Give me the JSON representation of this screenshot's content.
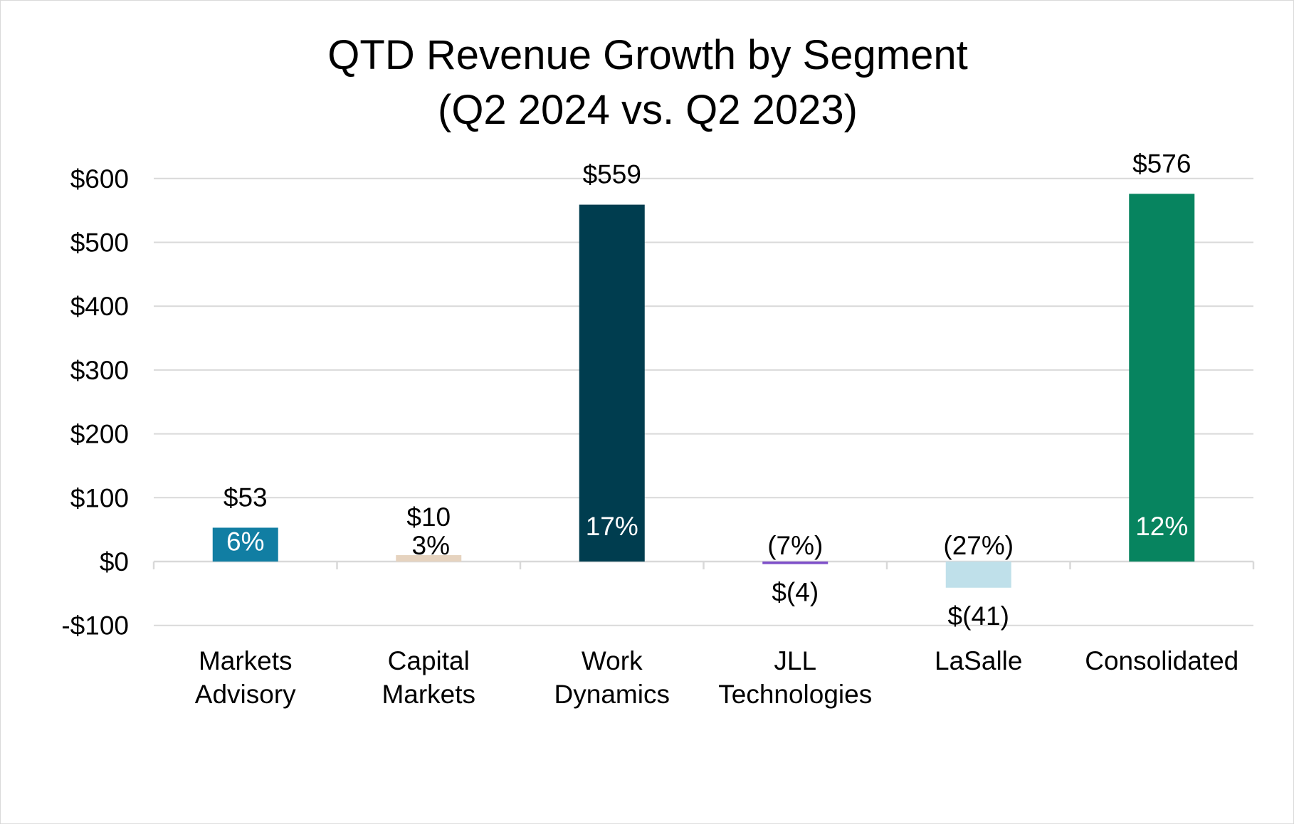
{
  "chart_data": {
    "type": "bar",
    "title_lines": [
      "QTD Revenue Growth by Segment",
      "(Q2 2024 vs. Q2 2023)"
    ],
    "categories": [
      [
        "Markets",
        "Advisory"
      ],
      [
        "Capital",
        "Markets"
      ],
      [
        "Work",
        "Dynamics"
      ],
      [
        "JLL",
        "Technologies"
      ],
      [
        "LaSalle"
      ],
      [
        "Consolidated"
      ]
    ],
    "values": [
      53,
      10,
      559,
      -4,
      -41,
      576
    ],
    "value_labels": [
      "$53",
      "$10",
      "$559",
      "$(4)",
      "$(41)",
      "$576"
    ],
    "pct_labels": [
      "6%",
      "3%",
      "17%",
      "(7%)",
      "(27%)",
      "12%"
    ],
    "colors": [
      "#117ea3",
      "#e6d3bf",
      "#003d4f",
      "#7e4fc9",
      "#bfe0ea",
      "#07845f"
    ],
    "ylim": [
      -100,
      600
    ],
    "yticks": [
      -100,
      0,
      100,
      200,
      300,
      400,
      500,
      600
    ],
    "ytick_labels": [
      "-$100",
      "$0",
      "$100",
      "$200",
      "$300",
      "$400",
      "$500",
      "$600"
    ],
    "grid": true,
    "xlabel": "",
    "ylabel": ""
  }
}
